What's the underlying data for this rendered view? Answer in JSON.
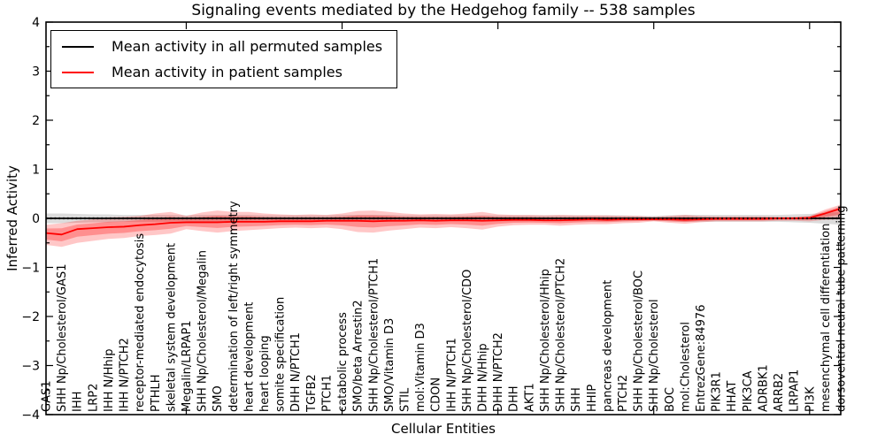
{
  "title": "Signaling events mediated by the Hedgehog family -- 538 samples",
  "axes": {
    "ylabel": "Inferred Activity",
    "xlabel": "Cellular Entities"
  },
  "legend": {
    "items": [
      {
        "label": "Mean activity in all permuted samples",
        "color": "#000000"
      },
      {
        "label": "Mean activity in patient samples",
        "color": "#ff0000"
      }
    ]
  },
  "chart_data": {
    "type": "line",
    "title": "Signaling events mediated by the Hedgehog family -- 538 samples",
    "xlabel": "Cellular Entities",
    "ylabel": "Inferred Activity",
    "ylim": [
      -4,
      4
    ],
    "ytick_step": 1,
    "ytick_minor_step": 0.5,
    "ytick_labels": [
      "4",
      "3",
      "2",
      "1",
      "0",
      "-1",
      "-2",
      "-3",
      "-4"
    ],
    "xtick_index_positions": [
      9,
      19,
      29,
      39,
      49
    ],
    "grid": false,
    "legend_position": "upper left",
    "categories": [
      "GAS1",
      "SHH Np/Cholesterol/GAS1",
      "IHH",
      "LRP2",
      "IHH N/Hhip",
      "IHH N/PTCH2",
      "receptor-mediated endocytosis",
      "PTHLH",
      "skeletal system development",
      "Megalin/LRPAP1",
      "SHH Np/Cholesterol/Megalin",
      "SMO",
      "determination of left/right symmetry",
      "heart development",
      "heart looping",
      "somite specification",
      "DHH N/PTCH1",
      "TGFB2",
      "PTCH1",
      "catabolic process",
      "SMO/beta Arrestin2",
      "SHH Np/Cholesterol/PTCH1",
      "SMO/Vitamin D3",
      "STIL",
      "mol:Vitamin D3",
      "CDON",
      "IHH N/PTCH1",
      "SHH Np/Cholesterol/CDO",
      "DHH N/Hhip",
      "DHH N/PTCH2",
      "DHH",
      "AKT1",
      "SHH Np/Cholesterol/Hhip",
      "SHH Np/Cholesterol/PTCH2",
      "SHH",
      "HHIP",
      "pancreas development",
      "PTCH2",
      "SHH Np/Cholesterol/BOC",
      "SHH Np/Cholesterol",
      "BOC",
      "mol:Cholesterol",
      "EntrezGene:84976",
      "PIK3R1",
      "HHAT",
      "PIK3CA",
      "ADRBK1",
      "ARRB2",
      "LRPAP1",
      "PI3K",
      "mesenchymal cell differentiation",
      "dorsoventral neural tube patterning"
    ],
    "series": [
      {
        "name": "Mean activity in all permuted samples",
        "color": "#000000",
        "values": [
          0,
          0,
          0,
          0,
          0,
          0,
          0,
          0,
          0,
          0,
          0,
          0,
          0,
          0,
          0,
          0,
          0,
          0,
          0,
          0,
          0,
          0,
          0,
          0,
          0,
          0,
          0,
          0,
          0,
          0,
          0,
          0,
          0,
          0,
          0,
          0,
          0,
          0,
          0,
          0,
          0,
          0,
          0,
          0,
          0,
          0,
          0,
          0,
          0,
          0,
          0,
          0
        ]
      },
      {
        "name": "Mean activity in patient samples",
        "color": "#ff0000",
        "values": [
          -0.3,
          -0.33,
          -0.22,
          -0.2,
          -0.18,
          -0.17,
          -0.14,
          -0.12,
          -0.09,
          -0.08,
          -0.08,
          -0.08,
          -0.07,
          -0.07,
          -0.07,
          -0.06,
          -0.06,
          -0.06,
          -0.05,
          -0.05,
          -0.05,
          -0.06,
          -0.05,
          -0.05,
          -0.04,
          -0.05,
          -0.04,
          -0.04,
          -0.05,
          -0.04,
          -0.03,
          -0.03,
          -0.04,
          -0.04,
          -0.03,
          -0.02,
          -0.03,
          -0.02,
          -0.02,
          -0.02,
          -0.02,
          -0.03,
          -0.02,
          -0.01,
          -0.01,
          -0.01,
          -0.01,
          0.0,
          0.0,
          0.01,
          0.1,
          0.2
        ]
      }
    ],
    "bands": [
      {
        "name": "permuted-samples-spread",
        "color": "#808080",
        "opacity": 0.28,
        "upper": [
          0.1,
          0.1,
          0.09,
          0.08,
          0.08,
          0.07,
          0.07,
          0.07,
          0.07,
          0.06,
          0.07,
          0.07,
          0.07,
          0.07,
          0.06,
          0.06,
          0.06,
          0.06,
          0.06,
          0.07,
          0.07,
          0.07,
          0.07,
          0.06,
          0.06,
          0.06,
          0.06,
          0.06,
          0.06,
          0.06,
          0.06,
          0.06,
          0.06,
          0.06,
          0.06,
          0.06,
          0.06,
          0.06,
          0.05,
          0.05,
          0.06,
          0.07,
          0.07,
          0.07,
          0.07,
          0.07,
          0.07,
          0.07,
          0.08,
          0.09,
          0.11,
          0.13
        ],
        "lower": [
          -0.1,
          -0.1,
          -0.09,
          -0.08,
          -0.08,
          -0.07,
          -0.07,
          -0.07,
          -0.07,
          -0.06,
          -0.07,
          -0.07,
          -0.07,
          -0.07,
          -0.06,
          -0.06,
          -0.06,
          -0.06,
          -0.06,
          -0.07,
          -0.07,
          -0.07,
          -0.07,
          -0.06,
          -0.06,
          -0.06,
          -0.06,
          -0.06,
          -0.06,
          -0.06,
          -0.06,
          -0.06,
          -0.06,
          -0.06,
          -0.06,
          -0.06,
          -0.06,
          -0.06,
          -0.05,
          -0.05,
          -0.06,
          -0.07,
          -0.07,
          -0.07,
          -0.07,
          -0.07,
          -0.07,
          -0.07,
          -0.08,
          -0.09,
          -0.11,
          -0.13
        ]
      },
      {
        "name": "patient-samples-spread",
        "color": "#ff0000",
        "opacity": 0.22,
        "inner_scale": 0.55,
        "inner_opacity": 0.28,
        "upper": [
          -0.13,
          -0.1,
          -0.05,
          -0.02,
          0.02,
          0.03,
          0.05,
          0.1,
          0.13,
          0.05,
          0.12,
          0.16,
          0.13,
          0.13,
          0.1,
          0.08,
          0.07,
          0.08,
          0.07,
          0.1,
          0.15,
          0.16,
          0.13,
          0.1,
          0.08,
          0.09,
          0.08,
          0.1,
          0.13,
          0.08,
          0.07,
          0.07,
          0.06,
          0.07,
          0.06,
          0.06,
          0.06,
          0.05,
          0.05,
          0.03,
          0.05,
          0.07,
          0.05,
          0.04,
          0.04,
          0.04,
          0.04,
          0.03,
          0.03,
          0.05,
          0.18,
          0.28
        ],
        "lower": [
          -0.54,
          -0.58,
          -0.5,
          -0.46,
          -0.42,
          -0.4,
          -0.36,
          -0.34,
          -0.31,
          -0.22,
          -0.26,
          -0.29,
          -0.26,
          -0.24,
          -0.22,
          -0.2,
          -0.19,
          -0.2,
          -0.19,
          -0.22,
          -0.28,
          -0.29,
          -0.25,
          -0.22,
          -0.19,
          -0.2,
          -0.18,
          -0.2,
          -0.23,
          -0.17,
          -0.14,
          -0.13,
          -0.13,
          -0.15,
          -0.13,
          -0.12,
          -0.12,
          -0.1,
          -0.09,
          -0.06,
          -0.09,
          -0.11,
          -0.08,
          -0.06,
          -0.06,
          -0.06,
          -0.06,
          -0.05,
          -0.05,
          -0.06,
          -0.03,
          -0.02
        ]
      }
    ],
    "zero_line": {
      "y": 0,
      "style": "dotted",
      "color": "#000000"
    }
  }
}
